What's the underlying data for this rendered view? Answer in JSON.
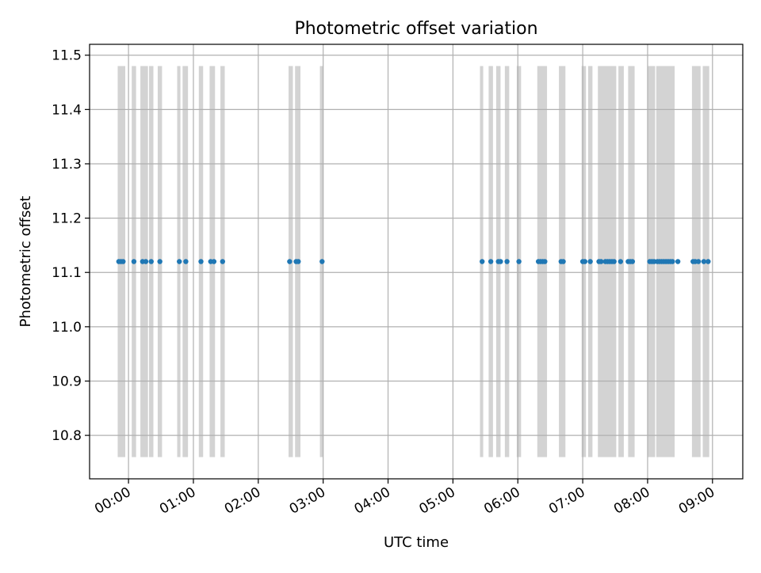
{
  "chart_data": {
    "type": "scatter",
    "title": "Photometric offset variation",
    "xlabel": "UTC time",
    "ylabel": "Photometric offset",
    "xlim": [
      "2023-01-01T23:24",
      "2023-01-02T09:28"
    ],
    "ylim": [
      10.72,
      11.52
    ],
    "x_ticks": [
      "00:00",
      "01:00",
      "02:00",
      "03:00",
      "04:00",
      "05:00",
      "06:00",
      "07:00",
      "08:00",
      "09:00"
    ],
    "x_tick_times": [
      "2023-01-02T00:00",
      "2023-01-02T01:00",
      "2023-01-02T02:00",
      "2023-01-02T03:00",
      "2023-01-02T04:00",
      "2023-01-02T05:00",
      "2023-01-02T06:00",
      "2023-01-02T07:00",
      "2023-01-02T08:00",
      "2023-01-02T09:00"
    ],
    "y_ticks": [
      "10.8",
      "10.9",
      "11.0",
      "11.1",
      "11.2",
      "11.3",
      "11.4",
      "11.5"
    ],
    "y_tick_values": [
      10.8,
      10.9,
      11.0,
      11.1,
      11.2,
      11.3,
      11.4,
      11.5
    ],
    "grid": true,
    "band_range": [
      10.76,
      11.48
    ],
    "bands": [
      [
        "2023-01-01T23:50",
        "2023-01-01T23:57"
      ],
      [
        "2023-01-02T00:03",
        "2023-01-02T00:07"
      ],
      [
        "2023-01-02T00:11",
        "2023-01-02T00:18"
      ],
      [
        "2023-01-02T00:19",
        "2023-01-02T00:23"
      ],
      [
        "2023-01-02T00:27",
        "2023-01-02T00:31"
      ],
      [
        "2023-01-02T00:45",
        "2023-01-02T00:48"
      ],
      [
        "2023-01-02T00:50",
        "2023-01-02T00:55"
      ],
      [
        "2023-01-02T01:05",
        "2023-01-02T01:09"
      ],
      [
        "2023-01-02T01:15",
        "2023-01-02T01:20"
      ],
      [
        "2023-01-02T01:25",
        "2023-01-02T01:29"
      ],
      [
        "2023-01-02T02:28",
        "2023-01-02T02:32"
      ],
      [
        "2023-01-02T02:34",
        "2023-01-02T02:39"
      ],
      [
        "2023-01-02T02:57",
        "2023-01-02T03:00"
      ],
      [
        "2023-01-02T05:25",
        "2023-01-02T05:28"
      ],
      [
        "2023-01-02T05:33",
        "2023-01-02T05:37"
      ],
      [
        "2023-01-02T05:40",
        "2023-01-02T05:44"
      ],
      [
        "2023-01-02T05:48",
        "2023-01-02T05:52"
      ],
      [
        "2023-01-02T05:59",
        "2023-01-02T06:03"
      ],
      [
        "2023-01-02T06:18",
        "2023-01-02T06:27"
      ],
      [
        "2023-01-02T06:38",
        "2023-01-02T06:44"
      ],
      [
        "2023-01-02T06:59",
        "2023-01-02T07:03"
      ],
      [
        "2023-01-02T07:05",
        "2023-01-02T07:09"
      ],
      [
        "2023-01-02T07:14",
        "2023-01-02T07:31"
      ],
      [
        "2023-01-02T07:33",
        "2023-01-02T07:38"
      ],
      [
        "2023-01-02T07:42",
        "2023-01-02T07:48"
      ],
      [
        "2023-01-02T08:00",
        "2023-01-02T08:07"
      ],
      [
        "2023-01-02T08:08",
        "2023-01-02T08:25"
      ],
      [
        "2023-01-02T08:41",
        "2023-01-02T08:49"
      ],
      [
        "2023-01-02T08:51",
        "2023-01-02T08:57"
      ]
    ],
    "series": [
      {
        "color": "#1f77b4",
        "x": [
          "2023-01-01T23:51",
          "2023-01-01T23:53",
          "2023-01-01T23:55",
          "2023-01-02T00:05",
          "2023-01-02T00:13",
          "2023-01-02T00:16",
          "2023-01-02T00:21",
          "2023-01-02T00:29",
          "2023-01-02T00:47",
          "2023-01-02T00:53",
          "2023-01-02T01:07",
          "2023-01-02T01:16",
          "2023-01-02T01:19",
          "2023-01-02T01:27",
          "2023-01-02T02:29",
          "2023-01-02T02:35",
          "2023-01-02T02:37",
          "2023-01-02T02:59",
          "2023-01-02T05:27",
          "2023-01-02T05:35",
          "2023-01-02T05:42",
          "2023-01-02T05:44",
          "2023-01-02T05:50",
          "2023-01-02T06:01",
          "2023-01-02T06:19",
          "2023-01-02T06:21",
          "2023-01-02T06:23",
          "2023-01-02T06:25",
          "2023-01-02T06:40",
          "2023-01-02T06:42",
          "2023-01-02T07:00",
          "2023-01-02T07:02",
          "2023-01-02T07:07",
          "2023-01-02T07:15",
          "2023-01-02T07:17",
          "2023-01-02T07:21",
          "2023-01-02T07:23",
          "2023-01-02T07:25",
          "2023-01-02T07:27",
          "2023-01-02T07:29",
          "2023-01-02T07:35",
          "2023-01-02T07:42",
          "2023-01-02T07:44",
          "2023-01-02T07:46",
          "2023-01-02T08:02",
          "2023-01-02T08:04",
          "2023-01-02T08:06",
          "2023-01-02T08:09",
          "2023-01-02T08:11",
          "2023-01-02T08:13",
          "2023-01-02T08:15",
          "2023-01-02T08:17",
          "2023-01-02T08:19",
          "2023-01-02T08:21",
          "2023-01-02T08:23",
          "2023-01-02T08:28",
          "2023-01-02T08:42",
          "2023-01-02T08:44",
          "2023-01-02T08:47",
          "2023-01-02T08:52",
          "2023-01-02T08:56"
        ],
        "y": [
          11.12,
          11.12,
          11.12,
          11.12,
          11.12,
          11.12,
          11.12,
          11.12,
          11.12,
          11.12,
          11.12,
          11.12,
          11.12,
          11.12,
          11.12,
          11.12,
          11.12,
          11.12,
          11.12,
          11.12,
          11.12,
          11.12,
          11.12,
          11.12,
          11.12,
          11.12,
          11.12,
          11.12,
          11.12,
          11.12,
          11.12,
          11.12,
          11.12,
          11.12,
          11.12,
          11.12,
          11.12,
          11.12,
          11.12,
          11.12,
          11.12,
          11.12,
          11.12,
          11.12,
          11.12,
          11.12,
          11.12,
          11.12,
          11.12,
          11.12,
          11.12,
          11.12,
          11.12,
          11.12,
          11.12,
          11.12,
          11.12,
          11.12,
          11.12,
          11.12,
          11.12
        ]
      }
    ],
    "colors": {
      "band": "#d3d3d3",
      "grid": "#b0b0b0",
      "axes": "#000000"
    }
  }
}
